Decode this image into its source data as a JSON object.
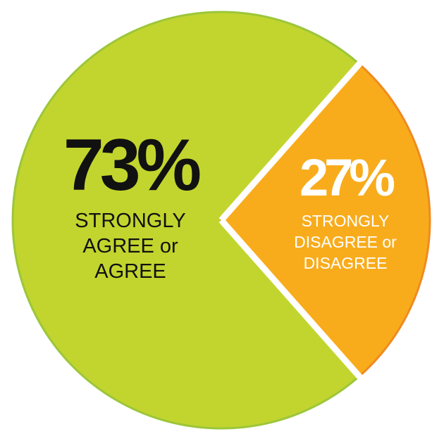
{
  "chart_data": {
    "type": "pie",
    "slices": [
      {
        "name": "STRONGLY AGREE or AGREE",
        "value": 73,
        "value_label": "73%",
        "label_lines": [
          "STRONGLY",
          "AGREE or",
          "AGREE"
        ],
        "color": "#c2d52e",
        "edge_color": "#9cc63a",
        "text_color": "#111111"
      },
      {
        "name": "STRONGLY DISAGREE or DISAGREE",
        "value": 27,
        "value_label": "27%",
        "label_lines": [
          "STRONGLY",
          "DISAGREE or",
          "DISAGREE"
        ],
        "color": "#f8ac1c",
        "edge_color": "#f08a1e",
        "text_color": "#ffffff"
      }
    ],
    "separator_color": "#ffffff"
  }
}
